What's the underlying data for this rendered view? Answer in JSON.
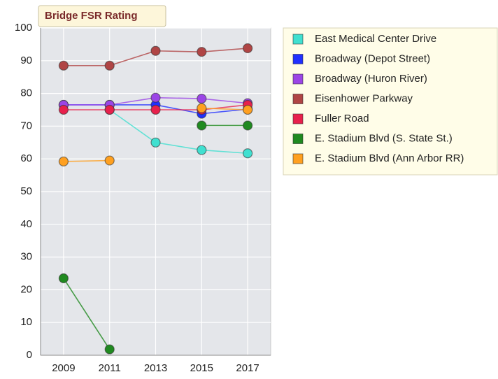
{
  "chart_data": {
    "type": "line",
    "title": "Bridge FSR Rating",
    "categories": [
      "2009",
      "2011",
      "2013",
      "2015",
      "2017"
    ],
    "series": [
      {
        "name": "East Medical Center Drive",
        "color": "#40e0d0",
        "values": [
          null,
          75,
          65,
          62.7,
          61.7
        ]
      },
      {
        "name": "Broadway (Depot Street)",
        "color": "#2030ff",
        "values": [
          76.5,
          76.5,
          76.5,
          73.8,
          75.2
        ]
      },
      {
        "name": "Broadway (Huron River)",
        "color": "#9b45e6",
        "values": [
          76.5,
          76.5,
          78.7,
          78.4,
          77
        ]
      },
      {
        "name": "Eisenhower Parkway",
        "color": "#b04545",
        "values": [
          88.5,
          88.5,
          93,
          92.7,
          93.8
        ]
      },
      {
        "name": "Fuller Road",
        "color": "#e8204c",
        "values": [
          75,
          75,
          75,
          75,
          76.5
        ]
      },
      {
        "name": "E. Stadium Blvd (S. State St.)",
        "color": "#208a20",
        "values": [
          23.5,
          1.8,
          null,
          70.2,
          70.2
        ]
      },
      {
        "name": "E. Stadium Blvd (Ann Arbor RR)",
        "color": "#ffa020",
        "values": [
          59.2,
          59.5,
          null,
          75.5,
          75
        ]
      }
    ],
    "ylim": [
      0,
      100
    ],
    "yticks": [
      0,
      10,
      20,
      30,
      40,
      50,
      60,
      70,
      80,
      90,
      100
    ],
    "grid": true,
    "legend": "right"
  }
}
